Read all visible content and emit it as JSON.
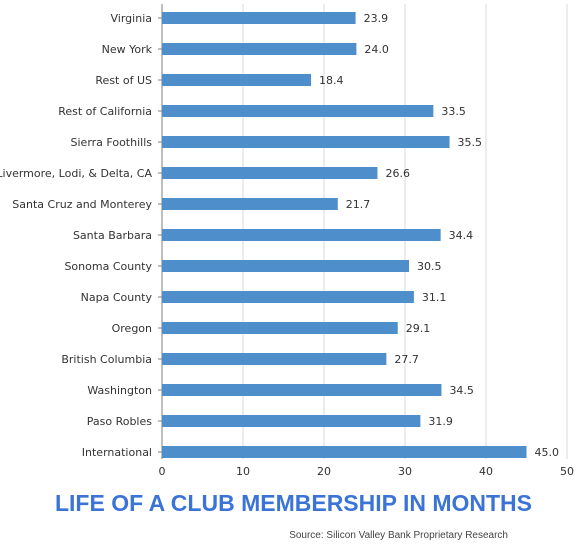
{
  "colors": {
    "bar": "#4e8fcb",
    "grid": "#d9d9d9",
    "axis": "#7f7f7f",
    "title": "#3b74d6"
  },
  "chart_data": {
    "type": "bar",
    "orientation": "horizontal",
    "title": "LIFE OF A CLUB MEMBERSHIP IN MONTHS",
    "source": "Source: Silicon Valley Bank Proprietary Research",
    "xlim": [
      0,
      50
    ],
    "xticks": [
      0,
      10,
      20,
      30,
      40,
      50
    ],
    "grid": true,
    "categories": [
      "Virginia",
      "New York",
      "Rest of US",
      "Rest of California",
      "Sierra Foothills",
      "Livermore, Lodi, & Delta, CA",
      "Santa Cruz and Monterey",
      "Santa Barbara",
      "Sonoma County",
      "Napa County",
      "Oregon",
      "British Columbia",
      "Washington",
      "Paso Robles",
      "International"
    ],
    "values": [
      23.9,
      24.0,
      18.4,
      33.5,
      35.5,
      26.6,
      21.7,
      34.4,
      30.5,
      31.1,
      29.1,
      27.7,
      34.5,
      31.9,
      45.0
    ],
    "value_labels": [
      "23.9",
      "24.0",
      "18.4",
      "33.5",
      "35.5",
      "26.6",
      "21.7",
      "34.4",
      "30.5",
      "31.1",
      "29.1",
      "27.7",
      "34.5",
      "31.9",
      "45.0"
    ]
  }
}
